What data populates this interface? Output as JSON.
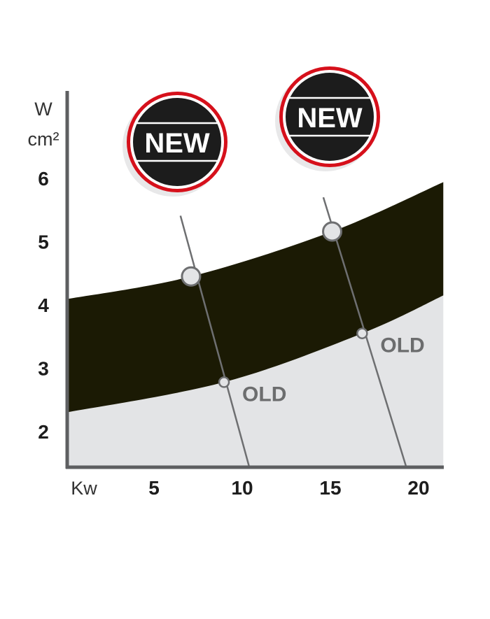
{
  "chart_data": {
    "type": "area",
    "title": "",
    "xlabel": "Kw",
    "ylabel_top": "W",
    "ylabel_bottom": "cm²",
    "xlim": [
      0,
      21.4
    ],
    "ylim": [
      1.44,
      7.4
    ],
    "x_ticks": [
      "5",
      "10",
      "15",
      "20"
    ],
    "x_tick_values": [
      5,
      10,
      15,
      20
    ],
    "y_ticks": [
      "2",
      "3",
      "4",
      "5",
      "6"
    ],
    "y_tick_values": [
      2,
      3,
      4,
      5,
      6
    ],
    "grid": false,
    "band_upper": {
      "x": [
        0,
        7.1,
        15.1,
        21.4
      ],
      "y": [
        4.09,
        4.45,
        5.16,
        5.94
      ]
    },
    "band_lower": {
      "x": [
        0,
        8.97,
        16.8,
        21.4
      ],
      "y": [
        2.3,
        2.78,
        3.55,
        4.15
      ]
    },
    "colors": {
      "band": "#1b1a04",
      "lower_area": "#e3e4e6",
      "axis": "#5e5f61",
      "guide": "#6e6f71",
      "badge_ring": "#d6101b",
      "badge_fill": "#1c1c1c"
    },
    "guides": [
      {
        "top": [
          6.5,
          5.41
        ],
        "new": [
          7.1,
          4.45
        ],
        "old": [
          8.97,
          2.78
        ],
        "bottom": [
          10.4,
          1.44
        ],
        "old_label": "OLD"
      },
      {
        "top": [
          14.6,
          5.7
        ],
        "new": [
          15.1,
          5.16
        ],
        "old": [
          16.8,
          3.55
        ],
        "bottom": [
          19.3,
          1.44
        ],
        "old_label": "OLD"
      }
    ],
    "badges": [
      {
        "label": "NEW"
      },
      {
        "label": "NEW"
      }
    ]
  }
}
